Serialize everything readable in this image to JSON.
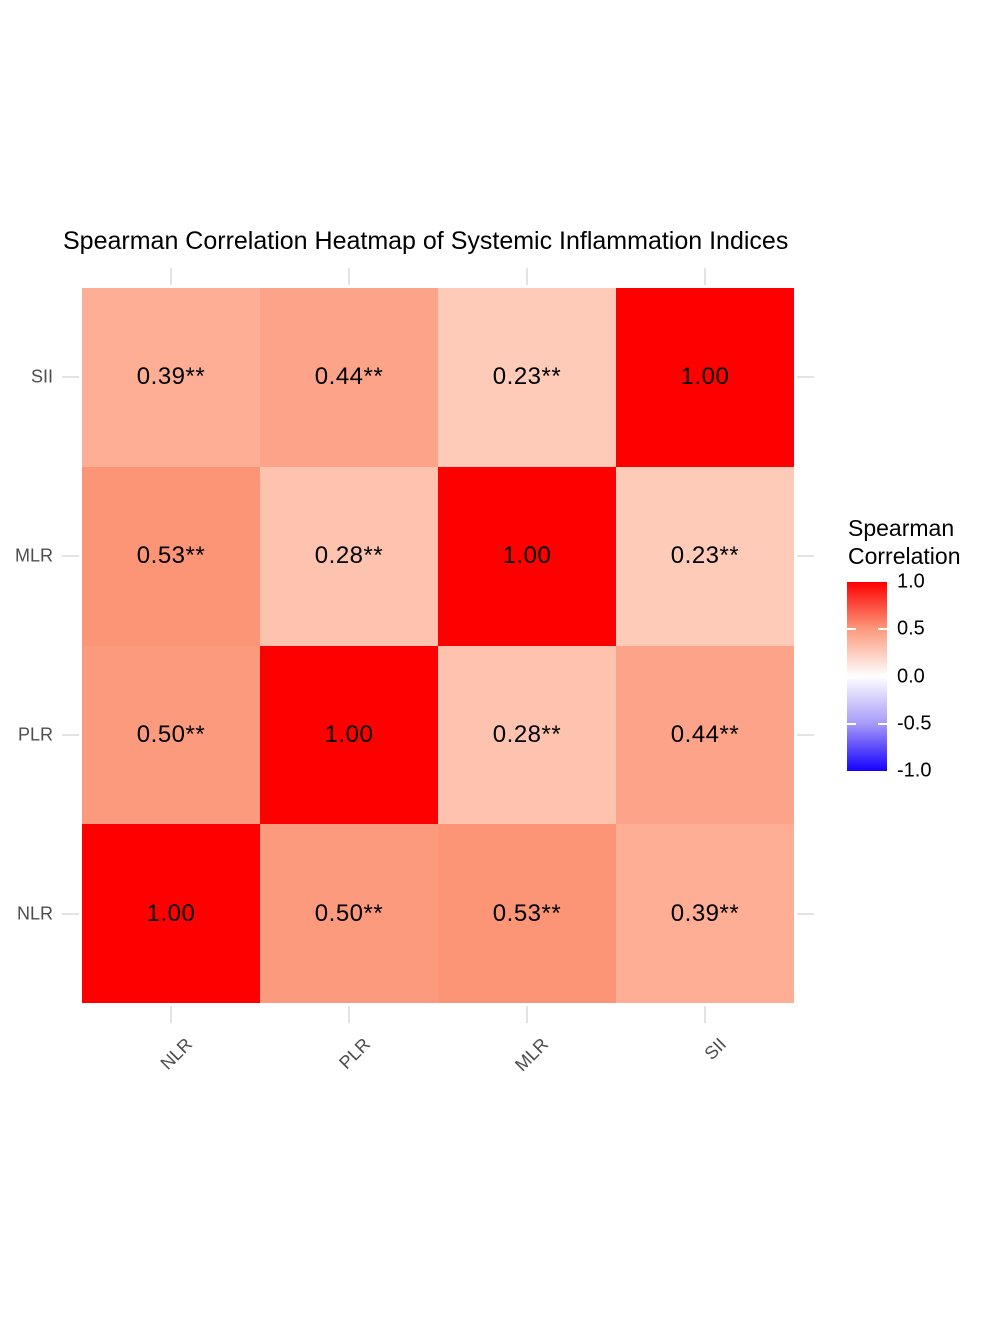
{
  "title": "Spearman Correlation Heatmap of Systemic Inflammation Indices",
  "chart_data": {
    "type": "heatmap",
    "x_categories": [
      "NLR",
      "PLR",
      "MLR",
      "SII"
    ],
    "y_categories_top_to_bottom": [
      "SII",
      "MLR",
      "PLR",
      "NLR"
    ],
    "value_range": [
      -1.0,
      1.0
    ],
    "rows": [
      {
        "y": "SII",
        "cells": [
          {
            "label": "0.39**",
            "value": 0.39,
            "color": "#fdae95"
          },
          {
            "label": "0.44**",
            "value": 0.44,
            "color": "#fda389"
          },
          {
            "label": "0.23**",
            "value": 0.23,
            "color": "#fecbb9"
          },
          {
            "label": "1.00",
            "value": 1.0,
            "color": "#fe0000"
          }
        ]
      },
      {
        "y": "MLR",
        "cells": [
          {
            "label": "0.53**",
            "value": 0.53,
            "color": "#fc9476"
          },
          {
            "label": "0.28**",
            "value": 0.28,
            "color": "#fec3ae"
          },
          {
            "label": "1.00",
            "value": 1.0,
            "color": "#fe0000"
          },
          {
            "label": "0.23**",
            "value": 0.23,
            "color": "#fecbb9"
          }
        ]
      },
      {
        "y": "PLR",
        "cells": [
          {
            "label": "0.50**",
            "value": 0.5,
            "color": "#fc9a7d"
          },
          {
            "label": "1.00",
            "value": 1.0,
            "color": "#fe0000"
          },
          {
            "label": "0.28**",
            "value": 0.28,
            "color": "#fec3ae"
          },
          {
            "label": "0.44**",
            "value": 0.44,
            "color": "#fda389"
          }
        ]
      },
      {
        "y": "NLR",
        "cells": [
          {
            "label": "1.00",
            "value": 1.0,
            "color": "#fe0000"
          },
          {
            "label": "0.50**",
            "value": 0.5,
            "color": "#fc9a7d"
          },
          {
            "label": "0.53**",
            "value": 0.53,
            "color": "#fc9476"
          },
          {
            "label": "0.39**",
            "value": 0.39,
            "color": "#fdae95"
          }
        ]
      }
    ],
    "legend": {
      "title": "Spearman\nCorrelation",
      "ticks": [
        "1.0",
        "0.5",
        "0.0",
        "-0.5",
        "-1.0"
      ],
      "high_color": "#ff0000",
      "mid_color": "#ffffff",
      "low_color": "#0000ff",
      "position": "right"
    },
    "grid": false,
    "significance_note": "** shown beside coefficients"
  }
}
